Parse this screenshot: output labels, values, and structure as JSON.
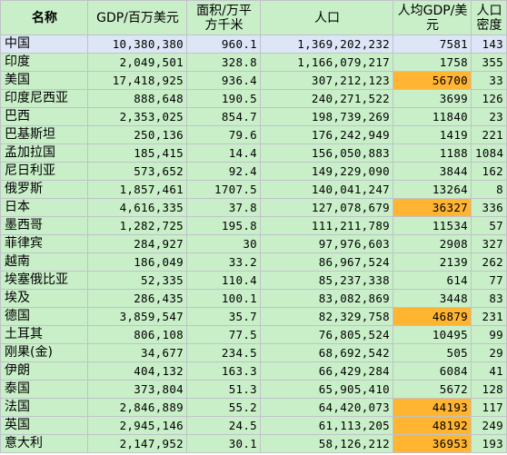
{
  "colors": {
    "grid_bg": "#c9efc9",
    "first_row_bg": "#dde6f6",
    "highlight_bg": "#ffb432",
    "border": "#bfc3c8"
  },
  "headers": {
    "name": "名称",
    "gdp": "GDP/百万美元",
    "area": "面积/万平方千米",
    "population": "人口",
    "gdp_per_capita": "人均GDP/美元",
    "density": "人口密度"
  },
  "rows": [
    {
      "name": "中国",
      "gdp": "10,380,380",
      "area": "960.1",
      "population": "1,369,202,232",
      "gdp_per_capita": "7581",
      "density": "143"
    },
    {
      "name": "印度",
      "gdp": "2,049,501",
      "area": "328.8",
      "population": "1,166,079,217",
      "gdp_per_capita": "1758",
      "density": "355"
    },
    {
      "name": "美国",
      "gdp": "17,418,925",
      "area": "936.4",
      "population": "307,212,123",
      "gdp_per_capita": "56700",
      "density": "33"
    },
    {
      "name": "印度尼西亚",
      "gdp": "888,648",
      "area": "190.5",
      "population": "240,271,522",
      "gdp_per_capita": "3699",
      "density": "126"
    },
    {
      "name": "巴西",
      "gdp": "2,353,025",
      "area": "854.7",
      "population": "198,739,269",
      "gdp_per_capita": "11840",
      "density": "23"
    },
    {
      "name": "巴基斯坦",
      "gdp": "250,136",
      "area": "79.6",
      "population": "176,242,949",
      "gdp_per_capita": "1419",
      "density": "221"
    },
    {
      "name": "孟加拉国",
      "gdp": "185,415",
      "area": "14.4",
      "population": "156,050,883",
      "gdp_per_capita": "1188",
      "density": "1084"
    },
    {
      "name": "尼日利亚",
      "gdp": "573,652",
      "area": "92.4",
      "population": "149,229,090",
      "gdp_per_capita": "3844",
      "density": "162"
    },
    {
      "name": "俄罗斯",
      "gdp": "1,857,461",
      "area": "1707.5",
      "population": "140,041,247",
      "gdp_per_capita": "13264",
      "density": "8"
    },
    {
      "name": "日本",
      "gdp": "4,616,335",
      "area": "37.8",
      "population": "127,078,679",
      "gdp_per_capita": "36327",
      "density": "336"
    },
    {
      "name": "墨西哥",
      "gdp": "1,282,725",
      "area": "195.8",
      "population": "111,211,789",
      "gdp_per_capita": "11534",
      "density": "57"
    },
    {
      "name": "菲律宾",
      "gdp": "284,927",
      "area": "30",
      "population": "97,976,603",
      "gdp_per_capita": "2908",
      "density": "327"
    },
    {
      "name": "越南",
      "gdp": "186,049",
      "area": "33.2",
      "population": "86,967,524",
      "gdp_per_capita": "2139",
      "density": "262"
    },
    {
      "name": "埃塞俄比亚",
      "gdp": "52,335",
      "area": "110.4",
      "population": "85,237,338",
      "gdp_per_capita": "614",
      "density": "77"
    },
    {
      "name": "埃及",
      "gdp": "286,435",
      "area": "100.1",
      "population": "83,082,869",
      "gdp_per_capita": "3448",
      "density": "83"
    },
    {
      "name": "德国",
      "gdp": "3,859,547",
      "area": "35.7",
      "population": "82,329,758",
      "gdp_per_capita": "46879",
      "density": "231"
    },
    {
      "name": "土耳其",
      "gdp": "806,108",
      "area": "77.5",
      "population": "76,805,524",
      "gdp_per_capita": "10495",
      "density": "99"
    },
    {
      "name": "刚果(金)",
      "gdp": "34,677",
      "area": "234.5",
      "population": "68,692,542",
      "gdp_per_capita": "505",
      "density": "29"
    },
    {
      "name": "伊朗",
      "gdp": "404,132",
      "area": "163.3",
      "population": "66,429,284",
      "gdp_per_capita": "6084",
      "density": "41"
    },
    {
      "name": "泰国",
      "gdp": "373,804",
      "area": "51.3",
      "population": "65,905,410",
      "gdp_per_capita": "5672",
      "density": "128"
    },
    {
      "name": "法国",
      "gdp": "2,846,889",
      "area": "55.2",
      "population": "64,420,073",
      "gdp_per_capita": "44193",
      "density": "117"
    },
    {
      "name": "英国",
      "gdp": "2,945,146",
      "area": "24.5",
      "population": "61,113,205",
      "gdp_per_capita": "48192",
      "density": "249"
    },
    {
      "name": "意大利",
      "gdp": "2,147,952",
      "area": "30.1",
      "population": "58,126,212",
      "gdp_per_capita": "36953",
      "density": "193"
    }
  ],
  "highlighted_gdp_per_capita_rows": [
    "美国",
    "日本",
    "德国",
    "法国",
    "英国",
    "意大利"
  ]
}
